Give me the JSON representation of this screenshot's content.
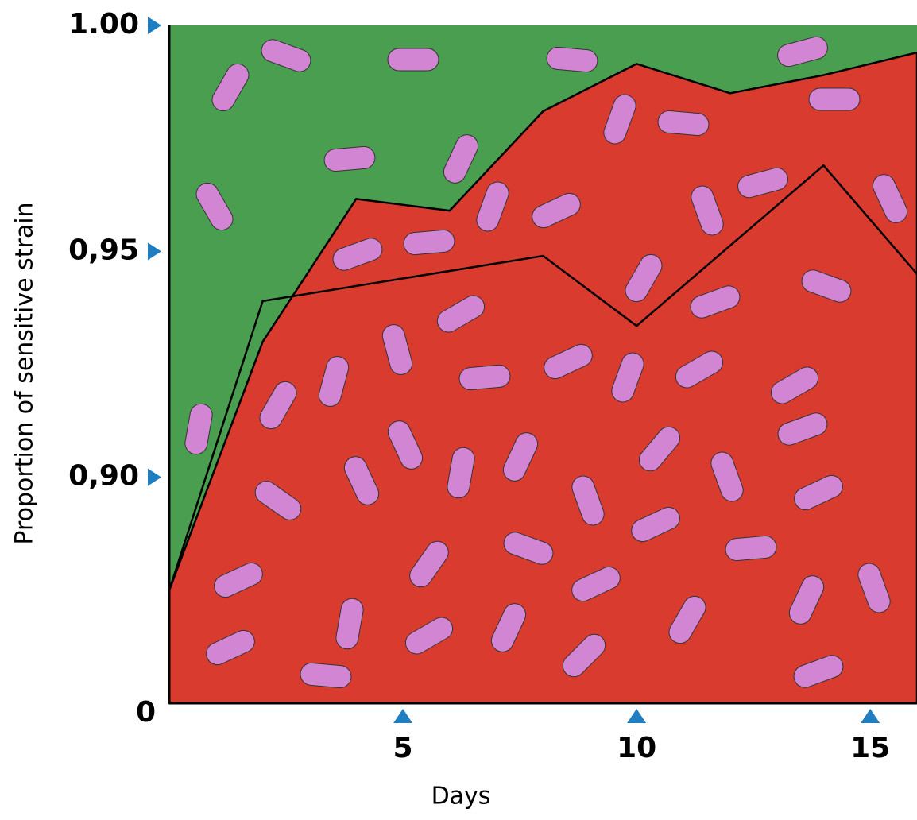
{
  "chart_data": {
    "type": "area",
    "x_label": "Days",
    "y_label": "Proportion of sensitive strain",
    "y_origin_label": "0",
    "xlim": [
      0,
      16
    ],
    "xticks": [
      5,
      10,
      15
    ],
    "ylim": [
      0.85,
      1.0
    ],
    "yticks": [
      {
        "value": 0.9,
        "label": "0,90"
      },
      {
        "value": 0.95,
        "label": "0,95"
      },
      {
        "value": 1.0,
        "label": "1.00"
      }
    ],
    "background_color": "#4a9e4f",
    "tick_marker_color": "#1f7ec2",
    "series": [
      {
        "color": "#d93b2e",
        "fill": true,
        "x": [
          0,
          2,
          4,
          6,
          8,
          10,
          12,
          14,
          16
        ],
        "values": [
          0.875,
          0.93,
          0.9616,
          0.959,
          0.981,
          0.9915,
          0.985,
          0.989,
          0.994
        ]
      },
      {
        "color": "#000000",
        "fill": false,
        "x": [
          0,
          2,
          8,
          10,
          14,
          16
        ],
        "values": [
          0.875,
          0.939,
          0.949,
          0.9335,
          0.969,
          0.945
        ]
      }
    ]
  }
}
